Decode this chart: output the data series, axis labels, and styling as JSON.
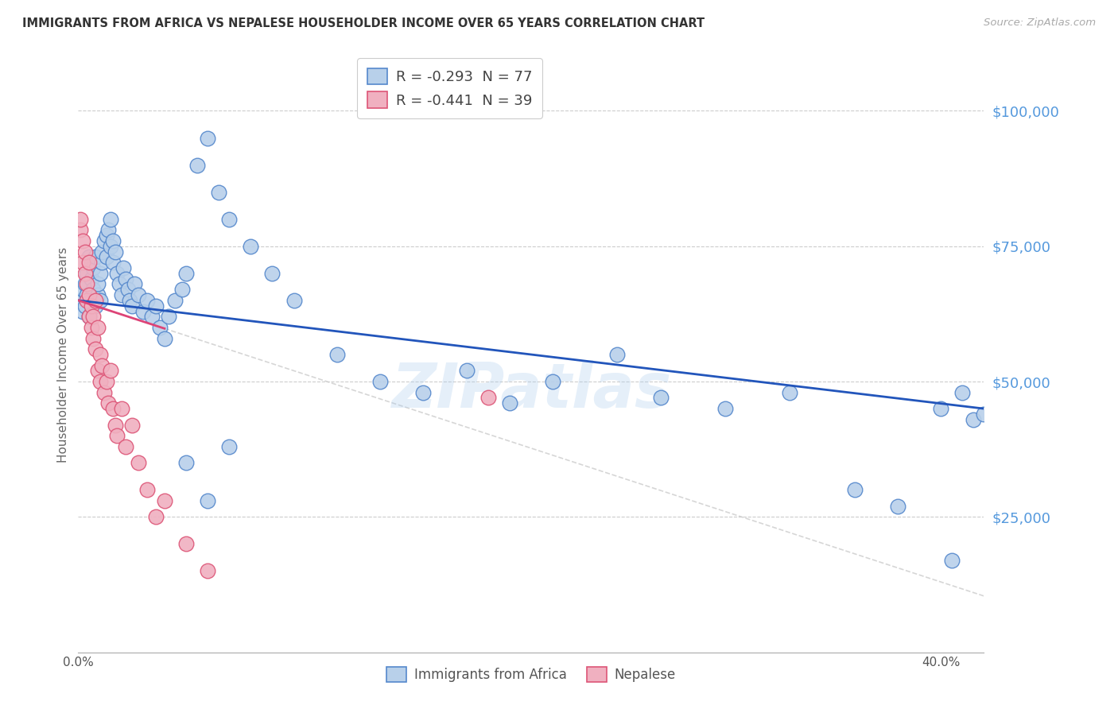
{
  "title": "IMMIGRANTS FROM AFRICA VS NEPALESE HOUSEHOLDER INCOME OVER 65 YEARS CORRELATION CHART",
  "source": "Source: ZipAtlas.com",
  "ylabel": "Householder Income Over 65 years",
  "y_tick_labels": [
    "$25,000",
    "$50,000",
    "$75,000",
    "$100,000"
  ],
  "y_tick_values": [
    25000,
    50000,
    75000,
    100000
  ],
  "ylim": [
    0,
    110000
  ],
  "xlim": [
    0.0,
    0.42
  ],
  "watermark": "ZIPatlas",
  "africa_color": "#b8d0ea",
  "africa_edge_color": "#5588cc",
  "nepal_color": "#f0b0c0",
  "nepal_edge_color": "#dd5577",
  "africa_trendline_color": "#2255bb",
  "nepal_trendline_color": "#dd4477",
  "extrap_color": "#cccccc",
  "background_color": "#ffffff",
  "grid_color": "#cccccc",
  "right_tick_color": "#5599dd",
  "title_color": "#333333",
  "source_color": "#aaaaaa",
  "axis_color": "#aaaaaa",
  "legend_R1": "R = ",
  "legend_R1_val": "-0.293",
  "legend_N1": "  N = ",
  "legend_N1_val": "77",
  "legend_R2": "R = ",
  "legend_R2_val": "-0.441",
  "legend_N2": "  N = ",
  "legend_N2_val": "39",
  "africa_x": [
    0.001,
    0.002,
    0.002,
    0.003,
    0.003,
    0.004,
    0.004,
    0.005,
    0.005,
    0.006,
    0.006,
    0.007,
    0.007,
    0.008,
    0.008,
    0.009,
    0.009,
    0.01,
    0.01,
    0.011,
    0.011,
    0.012,
    0.013,
    0.013,
    0.014,
    0.015,
    0.015,
    0.016,
    0.016,
    0.017,
    0.018,
    0.019,
    0.02,
    0.021,
    0.022,
    0.023,
    0.024,
    0.025,
    0.026,
    0.028,
    0.03,
    0.032,
    0.034,
    0.036,
    0.038,
    0.04,
    0.042,
    0.045,
    0.048,
    0.05,
    0.055,
    0.06,
    0.065,
    0.07,
    0.08,
    0.09,
    0.1,
    0.12,
    0.14,
    0.16,
    0.18,
    0.2,
    0.22,
    0.25,
    0.27,
    0.3,
    0.33,
    0.36,
    0.38,
    0.4,
    0.405,
    0.41,
    0.415,
    0.42,
    0.05,
    0.06,
    0.07
  ],
  "africa_y": [
    65000,
    63000,
    67000,
    64000,
    68000,
    66000,
    70000,
    62000,
    73000,
    65000,
    69000,
    67000,
    71000,
    64000,
    73000,
    66000,
    68000,
    65000,
    70000,
    72000,
    74000,
    76000,
    73000,
    77000,
    78000,
    75000,
    80000,
    72000,
    76000,
    74000,
    70000,
    68000,
    66000,
    71000,
    69000,
    67000,
    65000,
    64000,
    68000,
    66000,
    63000,
    65000,
    62000,
    64000,
    60000,
    58000,
    62000,
    65000,
    67000,
    70000,
    90000,
    95000,
    85000,
    80000,
    75000,
    70000,
    65000,
    55000,
    50000,
    48000,
    52000,
    46000,
    50000,
    55000,
    47000,
    45000,
    48000,
    30000,
    27000,
    45000,
    17000,
    48000,
    43000,
    44000,
    35000,
    28000,
    38000
  ],
  "nepal_x": [
    0.001,
    0.001,
    0.002,
    0.002,
    0.003,
    0.003,
    0.004,
    0.004,
    0.005,
    0.005,
    0.005,
    0.006,
    0.006,
    0.007,
    0.007,
    0.008,
    0.008,
    0.009,
    0.009,
    0.01,
    0.01,
    0.011,
    0.012,
    0.013,
    0.014,
    0.015,
    0.016,
    0.017,
    0.018,
    0.02,
    0.022,
    0.025,
    0.028,
    0.032,
    0.036,
    0.04,
    0.05,
    0.06,
    0.19
  ],
  "nepal_y": [
    78000,
    80000,
    76000,
    72000,
    74000,
    70000,
    68000,
    65000,
    72000,
    62000,
    66000,
    60000,
    64000,
    58000,
    62000,
    65000,
    56000,
    60000,
    52000,
    55000,
    50000,
    53000,
    48000,
    50000,
    46000,
    52000,
    45000,
    42000,
    40000,
    45000,
    38000,
    42000,
    35000,
    30000,
    25000,
    28000,
    20000,
    15000,
    47000
  ]
}
